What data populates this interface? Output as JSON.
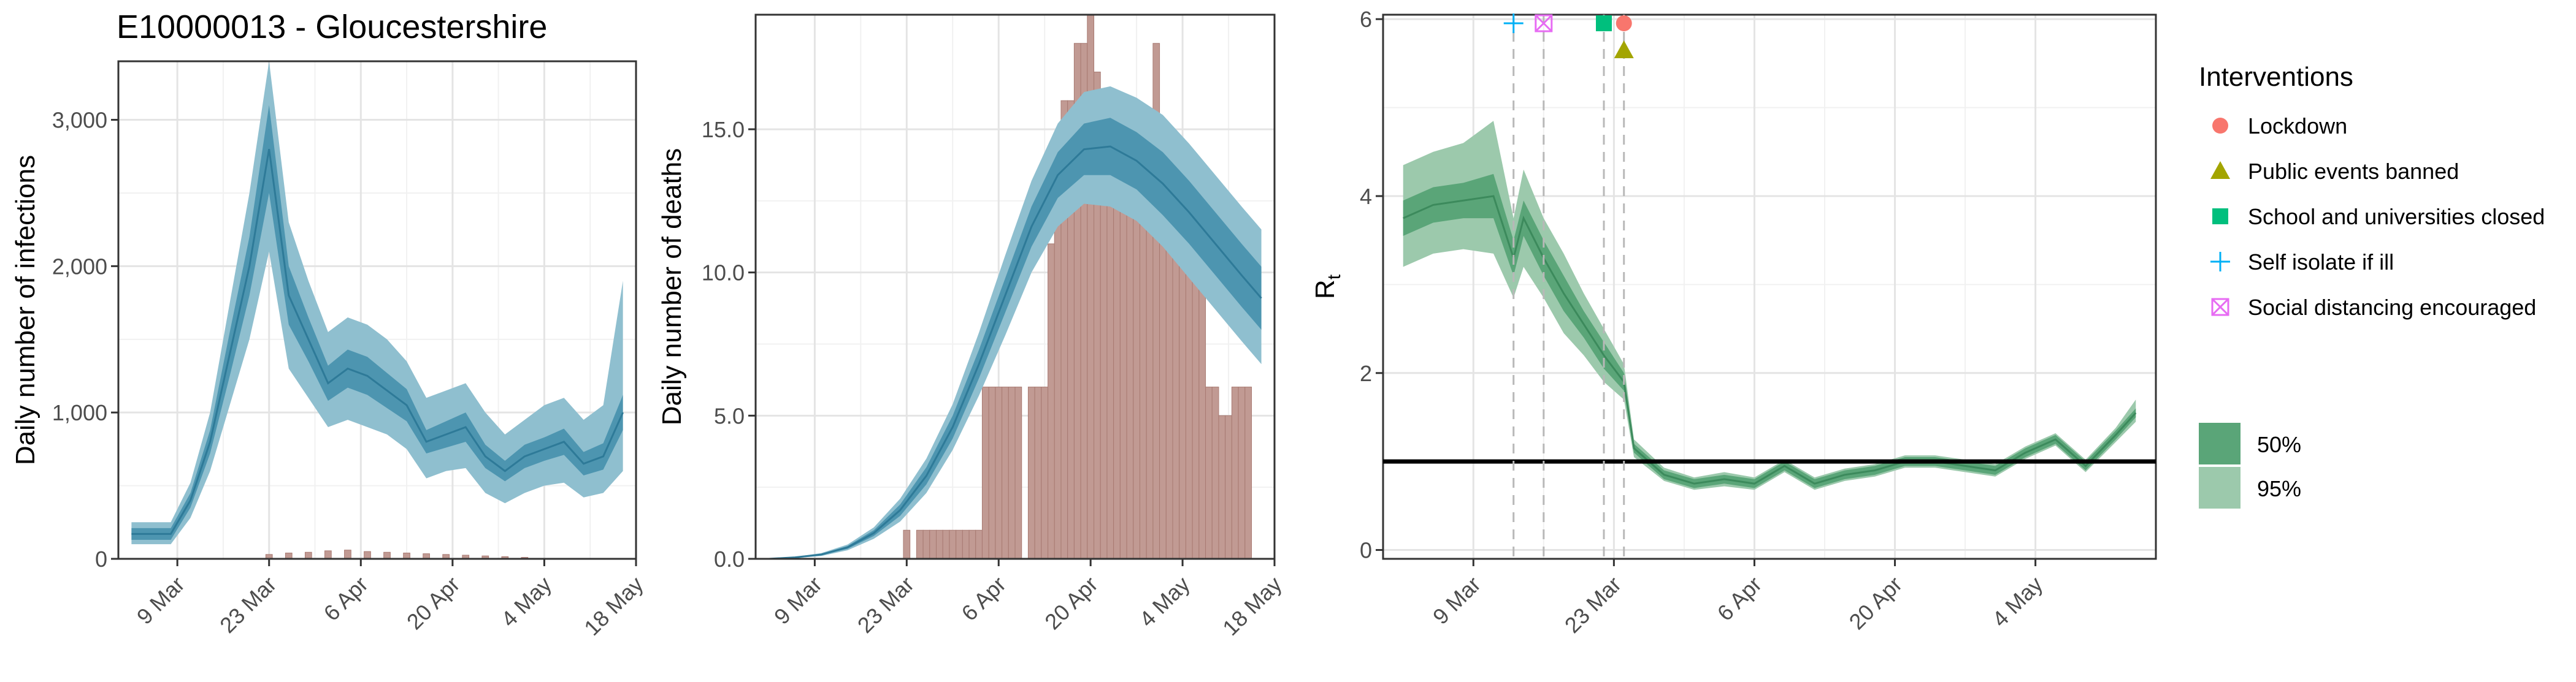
{
  "figure": {
    "title": "E10000013 - Gloucestershire"
  },
  "chart_data": [
    {
      "type": "area",
      "panel": "infections",
      "ylabel": "Daily number of infections",
      "xlabel": "",
      "x_ticks": [
        "9 Mar",
        "23 Mar",
        "6 Apr",
        "20 Apr",
        "4 May",
        "18 May"
      ],
      "x_range": [
        "2020-02-29",
        "2020-05-18"
      ],
      "ylim": [
        0,
        3400
      ],
      "y_ticks": [
        0,
        1000,
        2000,
        3000
      ],
      "y_tick_labels": [
        "0",
        "1,000",
        "2,000",
        "3,000"
      ],
      "grid": true,
      "x": [
        "2020-03-02",
        "2020-03-05",
        "2020-03-08",
        "2020-03-11",
        "2020-03-14",
        "2020-03-17",
        "2020-03-20",
        "2020-03-23",
        "2020-03-26",
        "2020-03-29",
        "2020-04-01",
        "2020-04-04",
        "2020-04-07",
        "2020-04-10",
        "2020-04-13",
        "2020-04-16",
        "2020-04-19",
        "2020-04-22",
        "2020-04-25",
        "2020-04-28",
        "2020-05-01",
        "2020-05-04",
        "2020-05-07",
        "2020-05-10",
        "2020-05-13",
        "2020-05-16"
      ],
      "median": [
        170,
        170,
        170,
        400,
        800,
        1400,
        2000,
        2800,
        1800,
        1500,
        1200,
        1300,
        1250,
        1150,
        1050,
        800,
        850,
        900,
        700,
        600,
        700,
        750,
        800,
        650,
        700,
        1000
      ],
      "ci50": [
        [
          130,
          210
        ],
        [
          130,
          210
        ],
        [
          130,
          210
        ],
        [
          350,
          450
        ],
        [
          720,
          880
        ],
        [
          1250,
          1550
        ],
        [
          1800,
          2200
        ],
        [
          2500,
          3100
        ],
        [
          1600,
          2000
        ],
        [
          1350,
          1650
        ],
        [
          1080,
          1320
        ],
        [
          1170,
          1430
        ],
        [
          1120,
          1380
        ],
        [
          1030,
          1270
        ],
        [
          940,
          1160
        ],
        [
          720,
          880
        ],
        [
          760,
          940
        ],
        [
          800,
          1000
        ],
        [
          620,
          780
        ],
        [
          530,
          670
        ],
        [
          620,
          780
        ],
        [
          670,
          830
        ],
        [
          710,
          890
        ],
        [
          570,
          730
        ],
        [
          610,
          790
        ],
        [
          880,
          1120
        ]
      ],
      "ci95": [
        [
          100,
          250
        ],
        [
          100,
          250
        ],
        [
          100,
          250
        ],
        [
          280,
          520
        ],
        [
          600,
          1000
        ],
        [
          1050,
          1750
        ],
        [
          1500,
          2500
        ],
        [
          2100,
          3400
        ],
        [
          1300,
          2300
        ],
        [
          1100,
          1900
        ],
        [
          900,
          1550
        ],
        [
          950,
          1650
        ],
        [
          900,
          1600
        ],
        [
          850,
          1500
        ],
        [
          750,
          1350
        ],
        [
          550,
          1100
        ],
        [
          600,
          1150
        ],
        [
          620,
          1200
        ],
        [
          450,
          1000
        ],
        [
          380,
          850
        ],
        [
          450,
          950
        ],
        [
          500,
          1050
        ],
        [
          520,
          1100
        ],
        [
          420,
          950
        ],
        [
          450,
          1050
        ],
        [
          600,
          1900
        ]
      ],
      "observed_bars": [
        30,
        40,
        45,
        55,
        60,
        50,
        45,
        40,
        35,
        30,
        25,
        20,
        15,
        10
      ],
      "observed_bar_x": [
        "2020-03-23",
        "2020-03-26",
        "2020-03-29",
        "2020-04-01",
        "2020-04-04",
        "2020-04-07",
        "2020-04-10",
        "2020-04-13",
        "2020-04-16",
        "2020-04-19",
        "2020-04-22",
        "2020-04-25",
        "2020-04-28",
        "2020-05-01"
      ]
    },
    {
      "type": "area",
      "panel": "deaths",
      "ylabel": "Daily number of deaths",
      "xlabel": "",
      "x_ticks": [
        "9 Mar",
        "23 Mar",
        "6 Apr",
        "20 Apr",
        "4 May",
        "18 May"
      ],
      "x_range": [
        "2020-02-29",
        "2020-05-18"
      ],
      "ylim": [
        0,
        19
      ],
      "y_ticks": [
        0,
        5,
        10,
        15
      ],
      "y_tick_labels": [
        "0.0",
        "5.0",
        "10.0",
        "15.0"
      ],
      "grid": true,
      "x": [
        "2020-03-02",
        "2020-03-06",
        "2020-03-10",
        "2020-03-14",
        "2020-03-18",
        "2020-03-22",
        "2020-03-26",
        "2020-03-30",
        "2020-04-03",
        "2020-04-07",
        "2020-04-11",
        "2020-04-15",
        "2020-04-19",
        "2020-04-23",
        "2020-04-27",
        "2020-05-01",
        "2020-05-05",
        "2020-05-09",
        "2020-05-13",
        "2020-05-16"
      ],
      "median": [
        0.0,
        0.05,
        0.15,
        0.4,
        0.9,
        1.7,
        2.9,
        4.6,
        6.8,
        9.2,
        11.6,
        13.4,
        14.3,
        14.4,
        13.9,
        13.1,
        12.1,
        11.0,
        9.9,
        9.1
      ],
      "ci50": [
        [
          0.0,
          0.0
        ],
        [
          0.04,
          0.06
        ],
        [
          0.13,
          0.17
        ],
        [
          0.35,
          0.45
        ],
        [
          0.8,
          1.0
        ],
        [
          1.5,
          1.9
        ],
        [
          2.6,
          3.2
        ],
        [
          4.2,
          5.0
        ],
        [
          6.3,
          7.3
        ],
        [
          8.6,
          9.8
        ],
        [
          10.9,
          12.3
        ],
        [
          12.6,
          14.2
        ],
        [
          13.4,
          15.2
        ],
        [
          13.4,
          15.4
        ],
        [
          12.9,
          14.9
        ],
        [
          12.0,
          14.2
        ],
        [
          11.0,
          13.2
        ],
        [
          9.9,
          12.1
        ],
        [
          8.8,
          11.0
        ],
        [
          8.0,
          10.2
        ]
      ],
      "ci95": [
        [
          0.0,
          0.0
        ],
        [
          0.03,
          0.07
        ],
        [
          0.1,
          0.2
        ],
        [
          0.3,
          0.5
        ],
        [
          0.7,
          1.1
        ],
        [
          1.3,
          2.1
        ],
        [
          2.3,
          3.5
        ],
        [
          3.8,
          5.4
        ],
        [
          5.7,
          7.9
        ],
        [
          7.8,
          10.6
        ],
        [
          10.0,
          13.2
        ],
        [
          11.6,
          15.2
        ],
        [
          12.4,
          16.3
        ],
        [
          12.3,
          16.5
        ],
        [
          11.8,
          16.1
        ],
        [
          10.9,
          15.5
        ],
        [
          9.8,
          14.5
        ],
        [
          8.7,
          13.4
        ],
        [
          7.6,
          12.3
        ],
        [
          6.8,
          11.5
        ]
      ],
      "observed_bars": [
        1,
        0,
        1,
        1,
        1,
        1,
        1,
        1,
        1,
        1,
        1,
        1,
        6,
        6,
        6,
        6,
        6,
        6,
        0,
        6,
        6,
        6,
        11,
        14,
        16,
        16,
        18,
        18,
        19,
        17,
        15,
        15,
        16,
        16,
        15,
        15,
        15,
        15,
        18,
        15,
        12,
        12,
        12,
        12,
        12,
        12,
        6,
        6,
        5,
        5,
        6,
        6,
        6
      ],
      "observed_bar_x": [
        "2020-03-23",
        "2020-03-24",
        "2020-03-25",
        "2020-03-26",
        "2020-03-27",
        "2020-03-28",
        "2020-03-29",
        "2020-03-30",
        "2020-03-31",
        "2020-04-01",
        "2020-04-02",
        "2020-04-03",
        "2020-04-04",
        "2020-04-05",
        "2020-04-06",
        "2020-04-07",
        "2020-04-08",
        "2020-04-09",
        "2020-04-10",
        "2020-04-11",
        "2020-04-12",
        "2020-04-13",
        "2020-04-14",
        "2020-04-15",
        "2020-04-16",
        "2020-04-17",
        "2020-04-18",
        "2020-04-19",
        "2020-04-20",
        "2020-04-21",
        "2020-04-22",
        "2020-04-23",
        "2020-04-24",
        "2020-04-25",
        "2020-04-26",
        "2020-04-27",
        "2020-04-28",
        "2020-04-29",
        "2020-04-30",
        "2020-05-01",
        "2020-05-02",
        "2020-05-03",
        "2020-05-04",
        "2020-05-05",
        "2020-05-06",
        "2020-05-07",
        "2020-05-08",
        "2020-05-09",
        "2020-05-10",
        "2020-05-11",
        "2020-05-12",
        "2020-05-13",
        "2020-05-14"
      ]
    },
    {
      "type": "area",
      "panel": "rt",
      "ylabel": "R",
      "ylabel_sub": "t",
      "xlabel": "",
      "x_ticks": [
        "9 Mar",
        "23 Mar",
        "6 Apr",
        "20 Apr",
        "4 May"
      ],
      "x_range": [
        "2020-02-29",
        "2020-05-16"
      ],
      "ylim": [
        -0.1,
        6.05
      ],
      "y_ticks": [
        0,
        2,
        4,
        6
      ],
      "y_tick_labels": [
        "0",
        "2",
        "4",
        "6"
      ],
      "grid": true,
      "reference_line": 1,
      "x": [
        "2020-03-02",
        "2020-03-05",
        "2020-03-08",
        "2020-03-11",
        "2020-03-13",
        "2020-03-14",
        "2020-03-16",
        "2020-03-18",
        "2020-03-20",
        "2020-03-22",
        "2020-03-24",
        "2020-03-25",
        "2020-03-28",
        "2020-03-31",
        "2020-04-03",
        "2020-04-06",
        "2020-04-09",
        "2020-04-12",
        "2020-04-15",
        "2020-04-18",
        "2020-04-21",
        "2020-04-24",
        "2020-04-27",
        "2020-04-30",
        "2020-05-03",
        "2020-05-06",
        "2020-05-09",
        "2020-05-12",
        "2020-05-14"
      ],
      "median": [
        3.75,
        3.9,
        3.95,
        4.0,
        3.3,
        3.75,
        3.3,
        2.9,
        2.55,
        2.2,
        1.9,
        1.15,
        0.85,
        0.75,
        0.8,
        0.75,
        0.95,
        0.75,
        0.85,
        0.9,
        1.0,
        1.0,
        0.95,
        0.9,
        1.1,
        1.25,
        0.95,
        1.3,
        1.55
      ],
      "ci50": [
        [
          3.55,
          3.95
        ],
        [
          3.7,
          4.1
        ],
        [
          3.75,
          4.15
        ],
        [
          3.75,
          4.25
        ],
        [
          3.1,
          3.5
        ],
        [
          3.55,
          3.95
        ],
        [
          3.1,
          3.5
        ],
        [
          2.7,
          3.1
        ],
        [
          2.4,
          2.7
        ],
        [
          2.05,
          2.35
        ],
        [
          1.8,
          2.0
        ],
        [
          1.1,
          1.2
        ],
        [
          0.8,
          0.9
        ],
        [
          0.7,
          0.8
        ],
        [
          0.75,
          0.85
        ],
        [
          0.7,
          0.8
        ],
        [
          0.9,
          1.0
        ],
        [
          0.7,
          0.8
        ],
        [
          0.8,
          0.9
        ],
        [
          0.85,
          0.95
        ],
        [
          0.95,
          1.05
        ],
        [
          0.95,
          1.05
        ],
        [
          0.9,
          1.0
        ],
        [
          0.85,
          0.95
        ],
        [
          1.05,
          1.15
        ],
        [
          1.2,
          1.3
        ],
        [
          0.9,
          1.0
        ],
        [
          1.25,
          1.35
        ],
        [
          1.5,
          1.6
        ]
      ],
      "ci95": [
        [
          3.2,
          4.35
        ],
        [
          3.35,
          4.5
        ],
        [
          3.4,
          4.6
        ],
        [
          3.35,
          4.85
        ],
        [
          2.85,
          3.75
        ],
        [
          3.2,
          4.3
        ],
        [
          2.85,
          3.75
        ],
        [
          2.45,
          3.35
        ],
        [
          2.2,
          2.9
        ],
        [
          1.9,
          2.5
        ],
        [
          1.7,
          2.1
        ],
        [
          1.05,
          1.25
        ],
        [
          0.78,
          0.93
        ],
        [
          0.68,
          0.82
        ],
        [
          0.72,
          0.88
        ],
        [
          0.68,
          0.82
        ],
        [
          0.88,
          1.02
        ],
        [
          0.68,
          0.82
        ],
        [
          0.78,
          0.92
        ],
        [
          0.83,
          0.97
        ],
        [
          0.93,
          1.07
        ],
        [
          0.93,
          1.07
        ],
        [
          0.88,
          1.02
        ],
        [
          0.83,
          0.97
        ],
        [
          1.03,
          1.17
        ],
        [
          1.18,
          1.32
        ],
        [
          0.88,
          1.02
        ],
        [
          1.22,
          1.38
        ],
        [
          1.45,
          1.7
        ]
      ],
      "interventions": [
        {
          "name": "Lockdown",
          "date": "2020-03-24",
          "marker": "circle",
          "color": "#F8766D"
        },
        {
          "name": "Public events banned",
          "date": "2020-03-24",
          "marker": "triangle",
          "color": "#A3A500"
        },
        {
          "name": "School and universities closed",
          "date": "2020-03-22",
          "marker": "square",
          "color": "#00BF7D"
        },
        {
          "name": "Self isolate if ill",
          "date": "2020-03-13",
          "marker": "plus",
          "color": "#00B0F6"
        },
        {
          "name": "Social distancing encouraged",
          "date": "2020-03-16",
          "marker": "boxx",
          "color": "#E76BF3"
        }
      ]
    }
  ],
  "legend": {
    "interventions_title": "Interventions",
    "items": [
      {
        "label": "Lockdown",
        "marker": "circle",
        "color": "#F8766D"
      },
      {
        "label": "Public events banned",
        "marker": "triangle",
        "color": "#A3A500"
      },
      {
        "label": "School and universities closed",
        "marker": "square",
        "color": "#00BF7D"
      },
      {
        "label": "Self isolate if ill",
        "marker": "plus",
        "color": "#00B0F6"
      },
      {
        "label": "Social distancing encouraged",
        "marker": "boxx",
        "color": "#E76BF3"
      }
    ],
    "ci": [
      {
        "label": "50%",
        "color": "#5AA578"
      },
      {
        "label": "95%",
        "color": "#9CC9AC"
      }
    ]
  },
  "colors": {
    "infections_ci95": "#8FBFCF",
    "infections_ci50": "#4D95B0",
    "infections_median": "#2E7A98",
    "bars": "#C19A93",
    "bars_stroke": "#A87A72",
    "rt_ci95": "#9CC9AC",
    "rt_ci50": "#5AA578",
    "rt_median": "#3C8A5C"
  }
}
